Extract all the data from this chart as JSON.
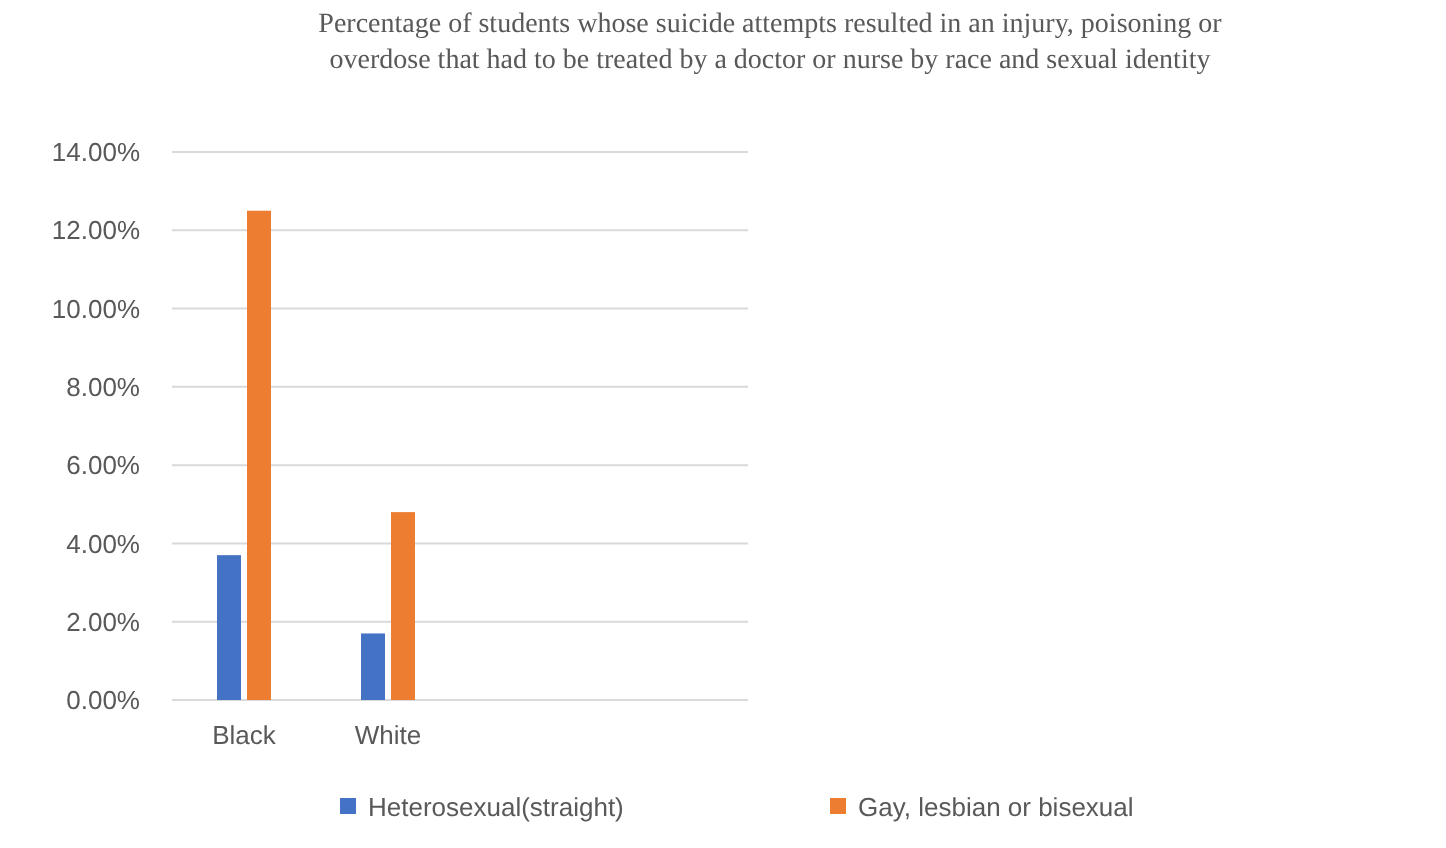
{
  "chart_data": {
    "type": "bar",
    "title": "Percentage of students whose suicide attempts resulted in an injury, poisoning or overdose that had to be treated by a doctor or nurse by race and sexual identity",
    "categories": [
      "Black",
      "White",
      null,
      null
    ],
    "series": [
      {
        "name": "Heterosexual(straight)",
        "color": "#4472c4",
        "values": [
          3.7,
          1.7,
          null,
          null
        ]
      },
      {
        "name": "Gay, lesbian or bisexual",
        "color": "#ed7d31",
        "values": [
          12.5,
          4.8,
          null,
          null
        ]
      }
    ],
    "ylim": [
      0,
      14
    ],
    "yticks": [
      {
        "value": 0,
        "label": "0.00%"
      },
      {
        "value": 2,
        "label": "2.00%"
      },
      {
        "value": 4,
        "label": "4.00%"
      },
      {
        "value": 6,
        "label": "6.00%"
      },
      {
        "value": 8,
        "label": "8.00%"
      },
      {
        "value": 10,
        "label": "10.00%"
      },
      {
        "value": 12,
        "label": "12.00%"
      },
      {
        "value": 14,
        "label": "14.00%"
      }
    ],
    "grid": "y",
    "legend": "bottom"
  }
}
